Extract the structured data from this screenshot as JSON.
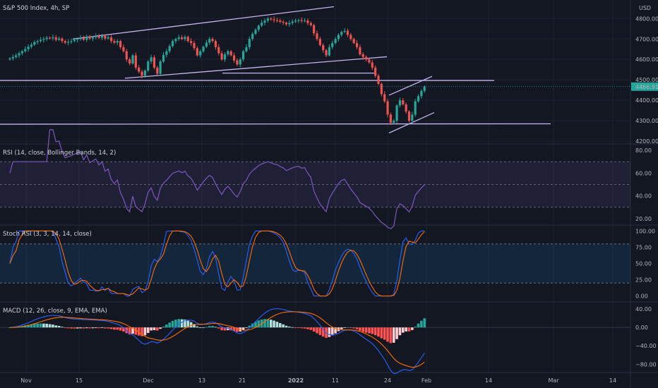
{
  "header": {
    "symbol_title": "S&P 500 Index, 4h, SP",
    "currency": "USD"
  },
  "chart_data": [
    {
      "type": "candlestick",
      "title": "S&P 500 Index, 4h, SP",
      "currency": "USD",
      "x_ticks": [
        "Nov",
        "15",
        "Dec",
        "13",
        "21",
        "2022",
        "11",
        "24",
        "Feb",
        "14",
        "Mar",
        "14"
      ],
      "y_ticks": [
        "4800.00",
        "4700.00",
        "4600.00",
        "4500.00",
        "4400.00",
        "4300.00",
        "4200.00"
      ],
      "ylim": [
        4190,
        4870
      ],
      "last_price": "4466.91",
      "up_color": "#26a69a",
      "down_color": "#ef5350",
      "drawing_color": "#c6b3f0",
      "close": [
        4605,
        4612,
        4620,
        4630,
        4640,
        4650,
        4662,
        4672,
        4685,
        4690,
        4696,
        4700,
        4706,
        4704,
        4708,
        4696,
        4702,
        4690,
        4682,
        4686,
        4690,
        4696,
        4700,
        4705,
        4696,
        4712,
        4702,
        4708,
        4714,
        4706,
        4716,
        4702,
        4708,
        4690,
        4682,
        4690,
        4660,
        4640,
        4600,
        4580,
        4620,
        4560,
        4540,
        4520,
        4545,
        4590,
        4610,
        4560,
        4530,
        4590,
        4622,
        4640,
        4665,
        4690,
        4700,
        4708,
        4700,
        4710,
        4690,
        4680,
        4655,
        4620,
        4640,
        4662,
        4682,
        4700,
        4690,
        4660,
        4630,
        4600,
        4625,
        4640,
        4620,
        4595,
        4575,
        4600,
        4640,
        4660,
        4700,
        4725,
        4745,
        4765,
        4780,
        4790,
        4800,
        4796,
        4792,
        4790,
        4784,
        4780,
        4772,
        4778,
        4785,
        4790,
        4792,
        4788,
        4790,
        4778,
        4768,
        4728,
        4700,
        4670,
        4645,
        4620,
        4660,
        4680,
        4700,
        4720,
        4735,
        4740,
        4720,
        4700,
        4680,
        4660,
        4625,
        4612,
        4600,
        4585,
        4560,
        4520,
        4480,
        4430,
        4395,
        4330,
        4290,
        4300,
        4375,
        4400,
        4380,
        4345,
        4300,
        4330,
        4395,
        4420,
        4446,
        4466.91
      ],
      "panes": [
        {
          "title": "RSI (14, close, Bollinger Bands, 14, 2)",
          "y_ticks": [
            "80.00",
            "60.00",
            "40.00",
            "20.00"
          ],
          "ylim": [
            15,
            85
          ],
          "levels": [
            70,
            50,
            30
          ]
        },
        {
          "title": "Stoch RSI (3, 3, 14, 14, close)",
          "y_ticks": [
            "100.00",
            "75.00",
            "50.00",
            "25.00",
            "0.00"
          ],
          "ylim": [
            -8,
            108
          ],
          "levels": [
            80,
            20
          ]
        },
        {
          "title": "MACD (12, 26, close, 9, EMA, EMA)",
          "y_ticks": [
            "40.00",
            "0.00",
            "−40.00",
            "−80.00"
          ],
          "ylim": [
            -98,
            54
          ]
        }
      ]
    }
  ]
}
